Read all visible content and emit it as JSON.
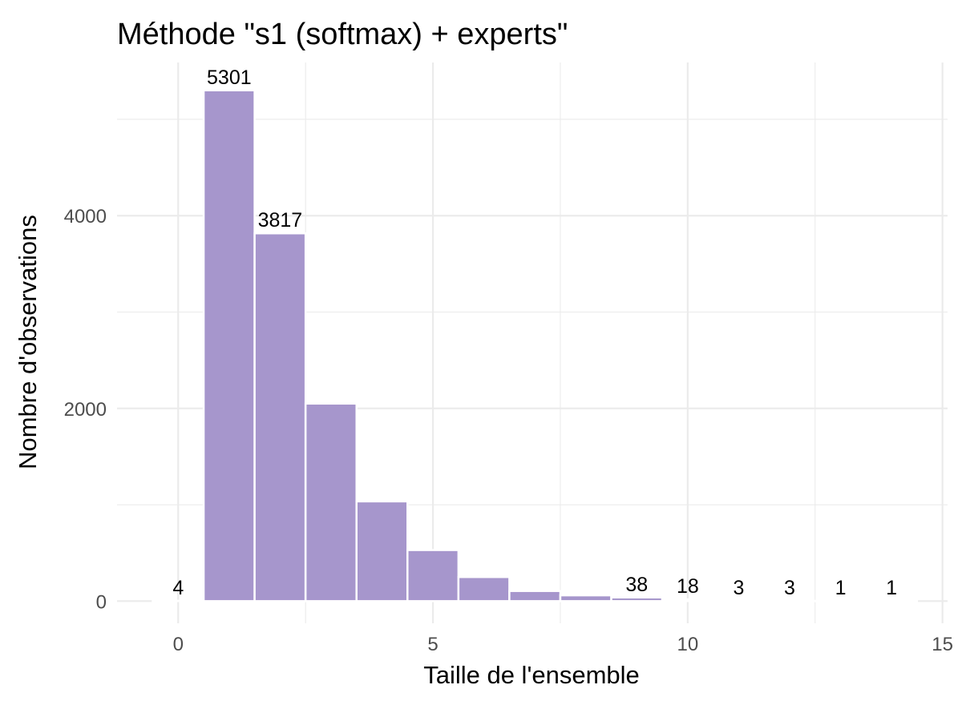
{
  "chart_data": {
    "type": "bar",
    "title": "Méthode \"s1 (softmax) + experts\"",
    "xlabel": "Taille de l'ensemble",
    "ylabel": "Nombre d'observations",
    "x": [
      0,
      1,
      2,
      3,
      4,
      5,
      6,
      7,
      8,
      9,
      10,
      11,
      12,
      13,
      14
    ],
    "values": [
      4,
      5301,
      3817,
      2050,
      1035,
      530,
      250,
      105,
      60,
      38,
      18,
      3,
      3,
      1,
      1
    ],
    "data_labels": [
      "4",
      "5301",
      "3817",
      "",
      "",
      "",
      "",
      "",
      "",
      "38",
      "18",
      "3",
      "3",
      "1",
      "1"
    ],
    "xlim": [
      -1.2,
      15.1
    ],
    "ylim": [
      -230,
      5590
    ],
    "x_ticks": [
      0,
      5,
      10,
      15
    ],
    "x_tick_labels": [
      "0",
      "5",
      "10",
      "15"
    ],
    "y_ticks": [
      0,
      2000,
      4000
    ],
    "y_tick_labels": [
      "0",
      "2000",
      "4000"
    ],
    "bar_color": "#a696cc",
    "grid": true
  }
}
